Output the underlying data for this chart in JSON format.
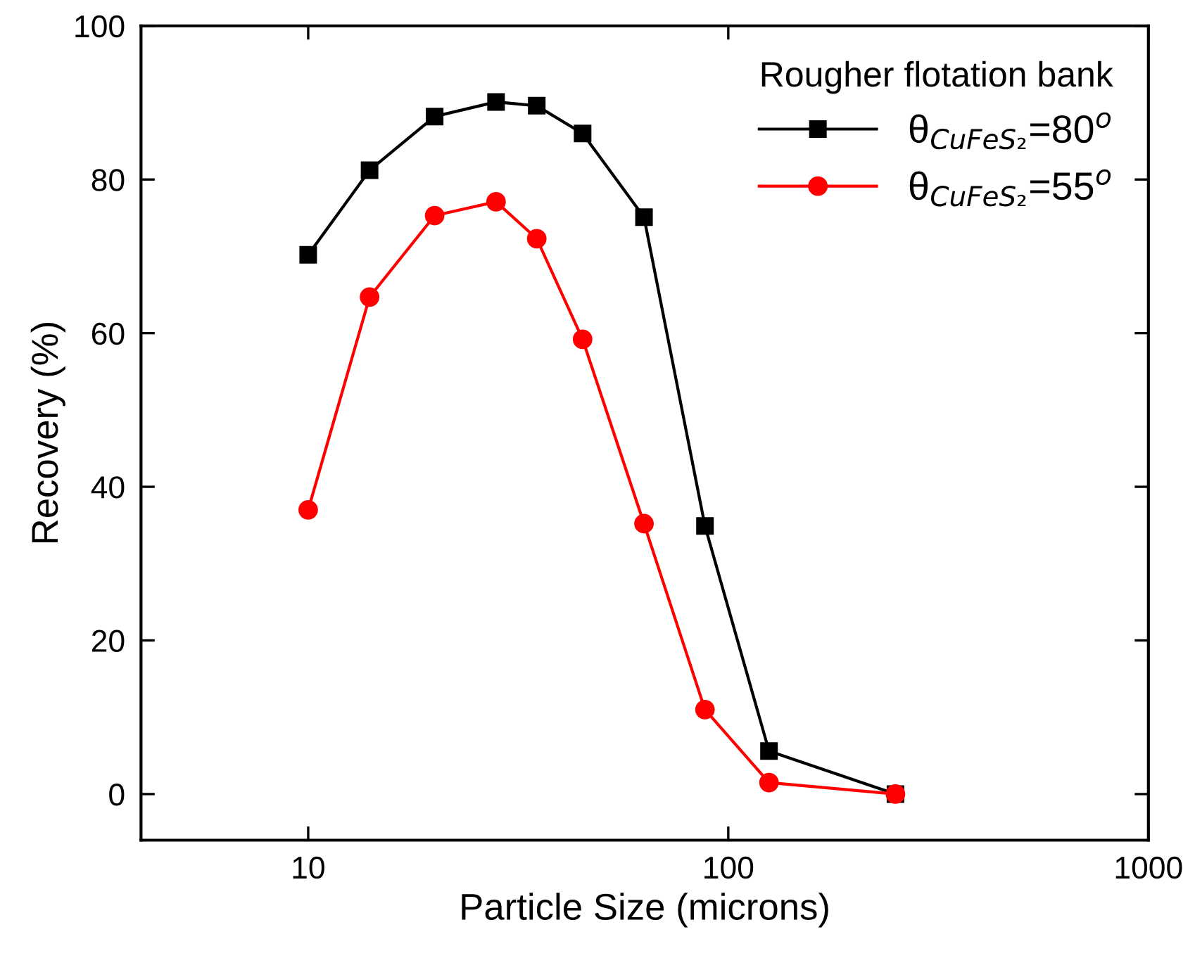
{
  "chart_data": {
    "type": "line",
    "xlabel": "Particle Size (microns)",
    "ylabel": "Recovery (%)",
    "legend_title": "Rougher flotation bank",
    "x": [
      10,
      14,
      20,
      28,
      35,
      45,
      63,
      88,
      125,
      250
    ],
    "series": [
      {
        "name": "θ$_{CuFeS₂}$=80$^{o}$",
        "color": "#000000",
        "marker": "square",
        "values": [
          70.2,
          81.2,
          88.2,
          90.1,
          89.6,
          86,
          75.1,
          34.9,
          5.6,
          0
        ]
      },
      {
        "name": "θ$_{CuFeS₂}$=55$^{o}$",
        "color": "#ff0000",
        "marker": "circle",
        "values": [
          37,
          64.7,
          75.3,
          77.1,
          72.3,
          59.2,
          35.2,
          11,
          1.5,
          0
        ]
      }
    ],
    "log": "x",
    "xlim": [
      4,
      1000
    ],
    "xticks": [
      10,
      100,
      1000
    ],
    "ylim": [
      -6,
      100
    ],
    "yticks": [
      0,
      20,
      40,
      60,
      80,
      100
    ],
    "grid": false,
    "legend": "top right",
    "line_style": "solid"
  }
}
